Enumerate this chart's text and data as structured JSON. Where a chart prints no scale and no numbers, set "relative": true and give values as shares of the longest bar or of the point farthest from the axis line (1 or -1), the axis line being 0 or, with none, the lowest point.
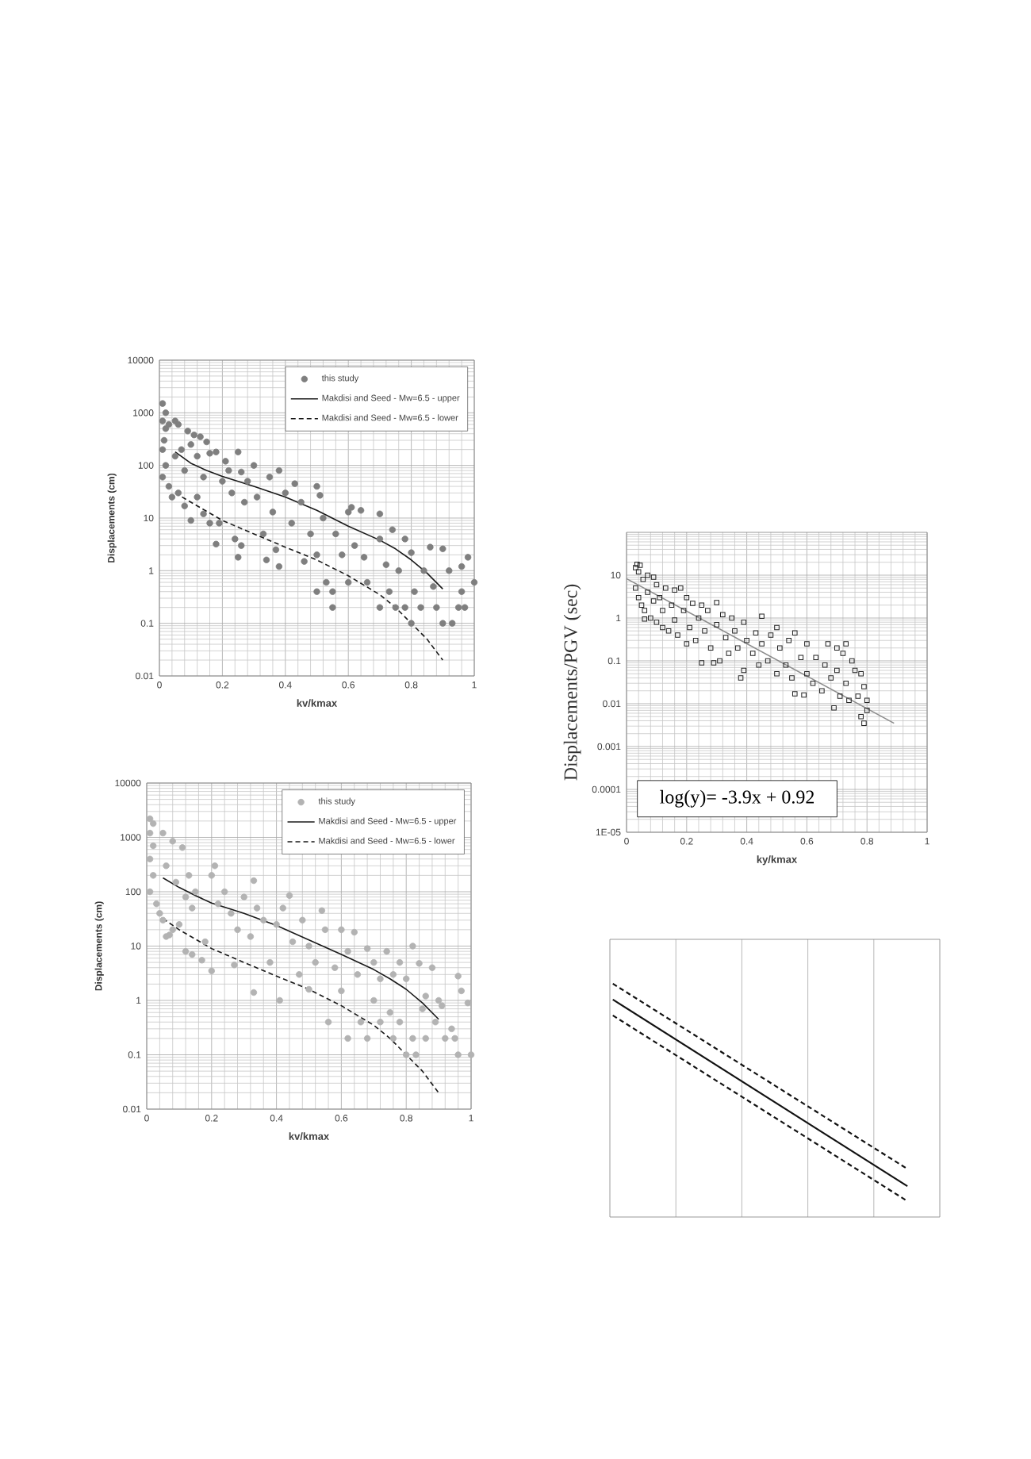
{
  "chart_data": [
    {
      "type": "scatter",
      "xlabel": "kv/kmax",
      "ylabel": "Displacements (cm)",
      "log": "y",
      "xlim": [
        0,
        1
      ],
      "ylim": [
        0.01,
        10000
      ],
      "xticks": [
        0,
        0.2,
        0.4,
        0.6,
        0.8,
        1
      ],
      "yticks": [
        0.01,
        0.1,
        1,
        10,
        100,
        1000,
        10000
      ],
      "grid": true,
      "legend": "top right",
      "series": [
        {
          "name": "this study",
          "type": "scatter",
          "marker": "circle",
          "color": "#7f7f7f",
          "x": [
            0.01,
            0.02,
            0.01,
            0.02,
            0.015,
            0.01,
            0.02,
            0.01,
            0.03,
            0.04,
            0.03,
            0.05,
            0.06,
            0.09,
            0.11,
            0.13,
            0.15,
            0.05,
            0.07,
            0.08,
            0.1,
            0.12,
            0.14,
            0.16,
            0.18,
            0.06,
            0.08,
            0.1,
            0.12,
            0.14,
            0.16,
            0.18,
            0.19,
            0.2,
            0.21,
            0.22,
            0.23,
            0.24,
            0.25,
            0.26,
            0.27,
            0.25,
            0.26,
            0.28,
            0.3,
            0.31,
            0.33,
            0.34,
            0.35,
            0.36,
            0.37,
            0.38,
            0.38,
            0.4,
            0.42,
            0.43,
            0.45,
            0.46,
            0.48,
            0.5,
            0.5,
            0.51,
            0.5,
            0.52,
            0.53,
            0.55,
            0.55,
            0.56,
            0.58,
            0.6,
            0.61,
            0.6,
            0.62,
            0.64,
            0.65,
            0.66,
            0.7,
            0.7,
            0.7,
            0.72,
            0.73,
            0.74,
            0.75,
            0.76,
            0.78,
            0.78,
            0.8,
            0.8,
            0.81,
            0.83,
            0.84,
            0.86,
            0.87,
            0.88,
            0.9,
            0.9,
            0.92,
            0.93,
            0.95,
            0.96,
            0.96,
            0.98,
            0.97,
            1.0
          ],
          "values": [
            1500,
            1000,
            700,
            500,
            300,
            200,
            100,
            60,
            40,
            25,
            600,
            700,
            600,
            450,
            380,
            350,
            280,
            150,
            200,
            80,
            250,
            150,
            60,
            170,
            180,
            30,
            17,
            9,
            25,
            12,
            8,
            3.2,
            8,
            50,
            120,
            80,
            30,
            4,
            180,
            75,
            20,
            1.8,
            3,
            50,
            100,
            25,
            5,
            1.6,
            60,
            13,
            2.5,
            80,
            1.2,
            30,
            8,
            45,
            20,
            1.5,
            5,
            2,
            40,
            27,
            0.4,
            10,
            0.6,
            0.4,
            0.2,
            5,
            2,
            13,
            16,
            0.6,
            3,
            14,
            1.8,
            0.6,
            12,
            4,
            0.2,
            1.3,
            0.4,
            6,
            0.2,
            1,
            4,
            0.2,
            2.2,
            0.1,
            0.4,
            0.2,
            1,
            2.8,
            0.5,
            0.2,
            2.6,
            0.1,
            1,
            0.1,
            0.2,
            0.4,
            1.2,
            1.8,
            0.2,
            0.6
          ]
        },
        {
          "name": "Makdisi and Seed - Mw=6.5 - upper",
          "type": "line",
          "line_style": "solid",
          "color": "#1a1a1a",
          "x": [
            0.05,
            0.1,
            0.15,
            0.2,
            0.3,
            0.4,
            0.5,
            0.6,
            0.7,
            0.75,
            0.8,
            0.85,
            0.9
          ],
          "values": [
            180,
            110,
            80,
            62,
            40,
            25,
            14,
            7,
            3.8,
            2.6,
            1.6,
            0.9,
            0.45
          ]
        },
        {
          "name": "Makdisi and Seed - Mw=6.5 - lower",
          "type": "line",
          "line_style": "dashed",
          "color": "#1a1a1a",
          "x": [
            0.05,
            0.1,
            0.2,
            0.3,
            0.4,
            0.5,
            0.6,
            0.7,
            0.75,
            0.8,
            0.85,
            0.9
          ],
          "values": [
            30,
            20,
            9,
            5,
            2.8,
            1.6,
            0.8,
            0.35,
            0.2,
            0.1,
            0.05,
            0.02
          ]
        }
      ]
    },
    {
      "type": "scatter",
      "xlabel": "kv/kmax",
      "ylabel": "Displacements (cm)",
      "log": "y",
      "xlim": [
        0,
        1
      ],
      "ylim": [
        0.01,
        10000
      ],
      "xticks": [
        0,
        0.2,
        0.4,
        0.6,
        0.8,
        1
      ],
      "yticks": [
        0.01,
        0.1,
        1,
        10,
        100,
        1000,
        10000
      ],
      "grid": true,
      "legend": "top right",
      "series": [
        {
          "name": "this study",
          "type": "scatter",
          "marker": "circle",
          "color": "#b3b3b3",
          "x": [
            0.01,
            0.02,
            0.01,
            0.02,
            0.01,
            0.02,
            0.01,
            0.03,
            0.04,
            0.05,
            0.08,
            0.11,
            0.06,
            0.09,
            0.12,
            0.14,
            0.05,
            0.07,
            0.1,
            0.13,
            0.15,
            0.06,
            0.08,
            0.12,
            0.14,
            0.17,
            0.2,
            0.21,
            0.22,
            0.18,
            0.2,
            0.24,
            0.26,
            0.27,
            0.28,
            0.3,
            0.32,
            0.33,
            0.33,
            0.34,
            0.36,
            0.38,
            0.4,
            0.41,
            0.42,
            0.44,
            0.45,
            0.47,
            0.48,
            0.5,
            0.5,
            0.52,
            0.54,
            0.55,
            0.56,
            0.58,
            0.6,
            0.6,
            0.62,
            0.62,
            0.64,
            0.65,
            0.66,
            0.68,
            0.68,
            0.7,
            0.7,
            0.72,
            0.72,
            0.74,
            0.75,
            0.76,
            0.76,
            0.78,
            0.78,
            0.8,
            0.8,
            0.82,
            0.82,
            0.83,
            0.84,
            0.85,
            0.86,
            0.86,
            0.88,
            0.89,
            0.9,
            0.91,
            0.92,
            0.94,
            0.95,
            0.96,
            0.96,
            0.97,
            0.99,
            1.0
          ],
          "values": [
            2200,
            1800,
            1200,
            700,
            400,
            200,
            100,
            60,
            40,
            1200,
            850,
            650,
            300,
            150,
            80,
            50,
            30,
            16,
            25,
            200,
            100,
            15,
            20,
            8,
            7,
            5.5,
            200,
            300,
            60,
            12,
            3.5,
            100,
            40,
            4.5,
            20,
            80,
            15,
            160,
            1.4,
            50,
            30,
            5,
            25,
            1,
            50,
            85,
            12,
            3,
            30,
            10,
            1.6,
            5,
            45,
            20,
            0.4,
            4,
            20,
            1.5,
            0.2,
            8,
            18,
            3,
            0.4,
            9,
            0.2,
            5,
            1,
            2.5,
            0.4,
            8,
            0.6,
            3,
            0.2,
            5,
            0.4,
            2.5,
            0.1,
            10,
            0.2,
            0.1,
            4.8,
            0.7,
            1.2,
            0.2,
            4,
            0.4,
            1,
            0.8,
            0.2,
            0.3,
            0.2,
            2.8,
            0.1,
            1.5,
            0.9,
            0.1
          ]
        },
        {
          "name": "Makdisi and Seed - Mw=6.5 - upper",
          "type": "line",
          "line_style": "solid",
          "color": "#1a1a1a",
          "x": [
            0.05,
            0.1,
            0.15,
            0.2,
            0.3,
            0.4,
            0.5,
            0.6,
            0.7,
            0.75,
            0.8,
            0.85,
            0.9
          ],
          "values": [
            180,
            120,
            85,
            62,
            40,
            24,
            13,
            7,
            3.7,
            2.5,
            1.6,
            0.9,
            0.45
          ]
        },
        {
          "name": "Makdisi and Seed - Mw=6.5 - lower",
          "type": "line",
          "line_style": "dashed",
          "color": "#1a1a1a",
          "x": [
            0.05,
            0.1,
            0.2,
            0.3,
            0.4,
            0.5,
            0.6,
            0.7,
            0.75,
            0.8,
            0.85,
            0.9
          ],
          "values": [
            32,
            20,
            9,
            5,
            2.8,
            1.6,
            0.8,
            0.35,
            0.2,
            0.1,
            0.05,
            0.02
          ]
        }
      ]
    },
    {
      "type": "scatter",
      "xlabel": "ky/kmax",
      "ylabel": "Displacements/PGV (sec)",
      "log": "y",
      "xlim": [
        0,
        1
      ],
      "ylim": [
        1e-05,
        100
      ],
      "xticks": [
        0,
        0.2,
        0.4,
        0.6,
        0.8,
        1
      ],
      "yticks": [
        {
          "value": 1e-05,
          "label": "1E-05"
        },
        0.0001,
        0.001,
        0.01,
        0.1,
        1,
        10
      ],
      "grid": true,
      "annotations": [
        "log(y)= -3.9x + 0.92"
      ],
      "series": [
        {
          "type": "scatter",
          "marker": "square",
          "color": "#222222",
          "x": [
            0.03,
            0.035,
            0.04,
            0.03,
            0.04,
            0.05,
            0.045,
            0.055,
            0.06,
            0.06,
            0.07,
            0.07,
            0.08,
            0.09,
            0.09,
            0.1,
            0.1,
            0.11,
            0.12,
            0.12,
            0.13,
            0.14,
            0.15,
            0.16,
            0.16,
            0.17,
            0.18,
            0.19,
            0.2,
            0.2,
            0.21,
            0.22,
            0.23,
            0.24,
            0.25,
            0.25,
            0.26,
            0.27,
            0.28,
            0.29,
            0.3,
            0.3,
            0.31,
            0.32,
            0.33,
            0.34,
            0.35,
            0.36,
            0.37,
            0.38,
            0.39,
            0.39,
            0.4,
            0.42,
            0.43,
            0.44,
            0.45,
            0.45,
            0.47,
            0.48,
            0.5,
            0.5,
            0.51,
            0.53,
            0.54,
            0.55,
            0.56,
            0.56,
            0.58,
            0.59,
            0.6,
            0.6,
            0.62,
            0.63,
            0.65,
            0.66,
            0.67,
            0.68,
            0.69,
            0.7,
            0.7,
            0.71,
            0.72,
            0.73,
            0.73,
            0.74,
            0.75,
            0.76,
            0.77,
            0.78,
            0.78,
            0.79,
            0.79,
            0.8,
            0.8
          ],
          "values": [
            15,
            18,
            12,
            5,
            3,
            2,
            17,
            8,
            1.5,
            0.95,
            10,
            4,
            1,
            9,
            2.5,
            0.8,
            6,
            3,
            0.6,
            1.5,
            5,
            0.5,
            2,
            4.5,
            0.9,
            0.4,
            5,
            1.5,
            0.25,
            3,
            0.6,
            2.2,
            0.3,
            1,
            0.09,
            2,
            0.5,
            1.5,
            0.2,
            0.09,
            2.3,
            0.7,
            0.1,
            1.2,
            0.35,
            0.15,
            1,
            0.5,
            0.2,
            0.04,
            0.8,
            0.06,
            0.3,
            0.15,
            0.45,
            0.08,
            1.1,
            0.25,
            0.1,
            0.4,
            0.6,
            0.05,
            0.2,
            0.08,
            0.3,
            0.04,
            0.45,
            0.017,
            0.12,
            0.016,
            0.25,
            0.05,
            0.03,
            0.12,
            0.02,
            0.08,
            0.25,
            0.04,
            0.008,
            0.2,
            0.06,
            0.015,
            0.15,
            0.25,
            0.03,
            0.012,
            0.1,
            0.06,
            0.015,
            0.05,
            0.005,
            0.025,
            0.0035,
            0.012,
            0.007
          ]
        },
        {
          "type": "line",
          "line_style": "solid",
          "color": "#8c8c8c",
          "x": [
            0,
            0.89
          ],
          "values": [
            8.3,
            0.0035
          ]
        }
      ]
    },
    {
      "type": "line",
      "relative": true,
      "categories": [
        null,
        null
      ],
      "grid": "x",
      "series": [
        {
          "line_style": "solid",
          "color": "#111111",
          "values": [
            0.932,
            0.132
          ]
        },
        {
          "line_style": "dashed",
          "color": "#111111",
          "values": [
            1.0,
            0.206
          ]
        },
        {
          "line_style": "dashed",
          "color": "#111111",
          "values": [
            0.864,
            0.068
          ]
        }
      ]
    }
  ]
}
